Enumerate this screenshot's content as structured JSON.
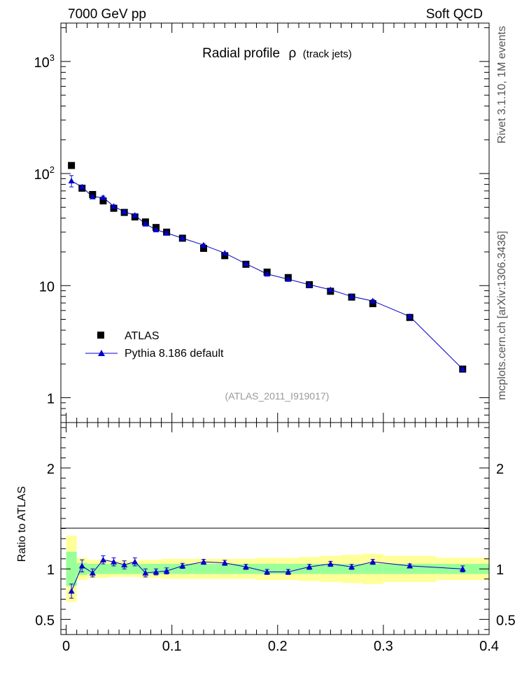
{
  "header": {
    "left": "7000 GeV pp",
    "right": "Soft QCD",
    "side_top": "Rivet 3.1.10, 1M events",
    "side_bottom": "mcplots.cern.ch [arXiv:1306.3436]"
  },
  "chart_data": {
    "type": "scatter",
    "title_main": "Radial profile",
    "title_symbol": "ρ",
    "title_suffix": "(track jets)",
    "analysis_label": "(ATLAS_2011_I919017)",
    "yscale": "log",
    "xlim": [
      -0.005,
      0.4
    ],
    "ylim": [
      0.6,
      2200
    ],
    "main_tick_labels": [
      "1",
      "10",
      "10",
      "10"
    ],
    "main_tick_exponents": [
      "",
      "",
      "2",
      "3"
    ],
    "legend": {
      "placement": "lower-left",
      "entries": [
        "ATLAS",
        "Pythia 8.186 default"
      ]
    },
    "series": [
      {
        "name": "ATLAS",
        "marker": "square",
        "color": "#000000",
        "x": [
          0.005,
          0.015,
          0.025,
          0.035,
          0.045,
          0.055,
          0.065,
          0.075,
          0.085,
          0.095,
          0.11,
          0.13,
          0.15,
          0.17,
          0.19,
          0.21,
          0.23,
          0.25,
          0.27,
          0.29,
          0.325,
          0.375
        ],
        "values": [
          118,
          74,
          65,
          57,
          49,
          45,
          41,
          37,
          33,
          30,
          26.5,
          21.5,
          18.5,
          15.5,
          13.2,
          11.8,
          10.2,
          8.9,
          7.9,
          6.9,
          5.2,
          1.8
        ]
      },
      {
        "name": "Pythia 8.186 default",
        "marker": "triangle",
        "color": "#0000cc",
        "x": [
          0.005,
          0.015,
          0.025,
          0.035,
          0.045,
          0.055,
          0.065,
          0.075,
          0.085,
          0.095,
          0.11,
          0.13,
          0.15,
          0.17,
          0.19,
          0.21,
          0.23,
          0.25,
          0.27,
          0.29,
          0.325,
          0.375
        ],
        "values": [
          86,
          76,
          62,
          61,
          51,
          45.5,
          42.5,
          35.5,
          31.5,
          29.5,
          26.5,
          23,
          19.5,
          15.7,
          12.7,
          11.4,
          10.2,
          9.2,
          8,
          7.3,
          5.3,
          1.8
        ],
        "errors": [
          10,
          3,
          2,
          2,
          1.5,
          1.2,
          1.2,
          1,
          1,
          0.8,
          0.6,
          0.5,
          0.4,
          0.3,
          0.3,
          0.25,
          0.2,
          0.2,
          0.2,
          0.2,
          0.15,
          0.05
        ]
      }
    ],
    "ratio": {
      "ylabel": "Ratio to ATLAS",
      "ylim": [
        0.35,
        2.45
      ],
      "yticks": [
        0.5,
        1,
        2
      ],
      "ytick_labels": [
        "0.5",
        "1",
        "2"
      ],
      "xticks": [
        0,
        0.1,
        0.2,
        0.3,
        0.4
      ],
      "xtick_labels": [
        "0",
        "0.1",
        "0.2",
        "0.3",
        "0.4"
      ],
      "bin_edges": [
        0,
        0.01,
        0.02,
        0.03,
        0.04,
        0.05,
        0.06,
        0.07,
        0.08,
        0.09,
        0.1,
        0.12,
        0.14,
        0.16,
        0.18,
        0.2,
        0.22,
        0.24,
        0.26,
        0.28,
        0.3,
        0.35,
        0.4
      ],
      "band_green_half": [
        0.17,
        0.06,
        0.05,
        0.05,
        0.05,
        0.05,
        0.05,
        0.05,
        0.05,
        0.05,
        0.05,
        0.05,
        0.05,
        0.05,
        0.05,
        0.05,
        0.05,
        0.05,
        0.05,
        0.05,
        0.05,
        0.05
      ],
      "band_yellow_half": [
        0.33,
        0.11,
        0.09,
        0.09,
        0.08,
        0.08,
        0.08,
        0.09,
        0.09,
        0.1,
        0.1,
        0.1,
        0.1,
        0.1,
        0.11,
        0.11,
        0.12,
        0.13,
        0.14,
        0.15,
        0.13,
        0.11
      ],
      "band_colors": {
        "green": "#99ff99",
        "yellow": "#ffff99"
      },
      "x": [
        0.005,
        0.015,
        0.025,
        0.035,
        0.045,
        0.055,
        0.065,
        0.075,
        0.085,
        0.095,
        0.11,
        0.13,
        0.15,
        0.17,
        0.19,
        0.21,
        0.23,
        0.25,
        0.27,
        0.29,
        0.325,
        0.375
      ],
      "values": [
        0.78,
        1.03,
        0.96,
        1.09,
        1.07,
        1.04,
        1.07,
        0.96,
        0.97,
        0.98,
        1.03,
        1.07,
        1.06,
        1.02,
        0.97,
        0.97,
        1.02,
        1.05,
        1.02,
        1.07,
        1.03,
        1.0
      ],
      "errors": [
        0.07,
        0.06,
        0.04,
        0.04,
        0.04,
        0.04,
        0.04,
        0.04,
        0.03,
        0.03,
        0.025,
        0.025,
        0.025,
        0.025,
        0.025,
        0.025,
        0.025,
        0.025,
        0.025,
        0.025,
        0.02,
        0.03
      ]
    }
  }
}
